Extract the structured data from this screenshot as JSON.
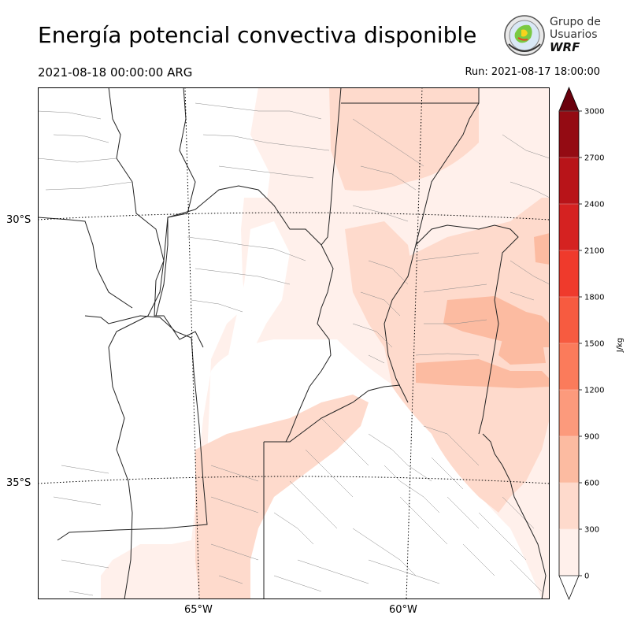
{
  "header": {
    "title": "Energía potencial convectiva disponible",
    "valid_time": "2021-08-18 00:00:00 ARG",
    "run_time": "Run: 2021-08-17 18:00:00"
  },
  "logo": {
    "line1": "Grupo de",
    "line2": "Usuarios",
    "line3": "WRF"
  },
  "map": {
    "lat_labels": [
      "30°S",
      "35°S"
    ],
    "lon_labels": [
      "65°W",
      "60°W"
    ]
  },
  "colorbar": {
    "label": "J/kg",
    "levels": [
      0,
      300,
      600,
      900,
      1200,
      1500,
      1800,
      2100,
      2400,
      2700,
      3000
    ],
    "tick_labels": [
      "0",
      "300",
      "600",
      "900",
      "1200",
      "1500",
      "1800",
      "2100",
      "2400",
      "2700",
      "3000"
    ],
    "colors": [
      "#fff0eb",
      "#fedacc",
      "#fcbba1",
      "#fc9a7c",
      "#fb7b5b",
      "#f75b40",
      "#ef3a2c",
      "#d52221",
      "#b81419",
      "#940b13",
      "#6a010d"
    ]
  }
}
